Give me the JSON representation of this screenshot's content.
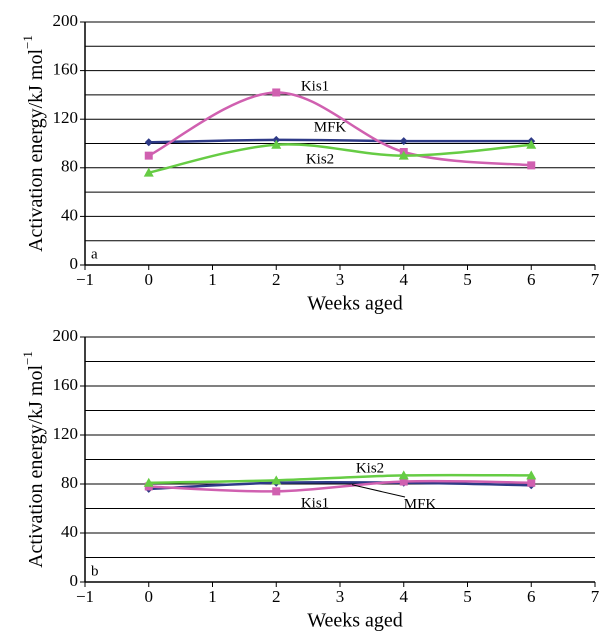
{
  "chart_data": [
    {
      "type": "line",
      "panel_label": "a",
      "x_label": "Weeks aged",
      "y_label": "Activation energy/kJ mol",
      "y_label_sup": "−1",
      "x": [
        0,
        2,
        4,
        6
      ],
      "series": [
        {
          "name": "MFK",
          "color": "#2e3a87",
          "marker": "diamond",
          "values": [
            101,
            103,
            102,
            102
          ]
        },
        {
          "name": "Kis1",
          "color": "#d060b0",
          "marker": "square",
          "values": [
            90,
            142,
            93,
            82
          ]
        },
        {
          "name": "Kis2",
          "color": "#66cc44",
          "marker": "triangle",
          "values": [
            76,
            99,
            90,
            99
          ]
        }
      ],
      "xlim": [
        -1,
        7
      ],
      "xticks": [
        {
          "value": -1,
          "label": "−1"
        },
        0,
        1,
        2,
        3,
        4,
        5,
        6,
        7
      ],
      "ylim": [
        0,
        200
      ],
      "yticks": [
        0,
        40,
        80,
        120,
        160,
        200
      ],
      "minor_grid": [
        20,
        60,
        100,
        140,
        180
      ],
      "grid": true
    },
    {
      "type": "line",
      "panel_label": "b",
      "x_label": "Weeks aged",
      "y_label": "Activation energy/kJ mol",
      "y_label_sup": "−1",
      "x": [
        0,
        2,
        4,
        6
      ],
      "series": [
        {
          "name": "MFK",
          "color": "#2e3a87",
          "marker": "diamond",
          "values": [
            76,
            81,
            81,
            79
          ]
        },
        {
          "name": "Kis1",
          "color": "#d060b0",
          "marker": "square",
          "values": [
            78,
            74,
            82,
            81
          ]
        },
        {
          "name": "Kis2",
          "color": "#66cc44",
          "marker": "triangle",
          "values": [
            81,
            83,
            87,
            87
          ]
        }
      ],
      "xlim": [
        -1,
        7
      ],
      "xticks": [
        {
          "value": -1,
          "label": "−1"
        },
        0,
        1,
        2,
        3,
        4,
        5,
        6,
        7
      ],
      "ylim": [
        0,
        200
      ],
      "yticks": [
        0,
        40,
        80,
        120,
        160,
        200
      ],
      "minor_grid": [
        20,
        60,
        100,
        140,
        180
      ],
      "grid": true
    }
  ]
}
